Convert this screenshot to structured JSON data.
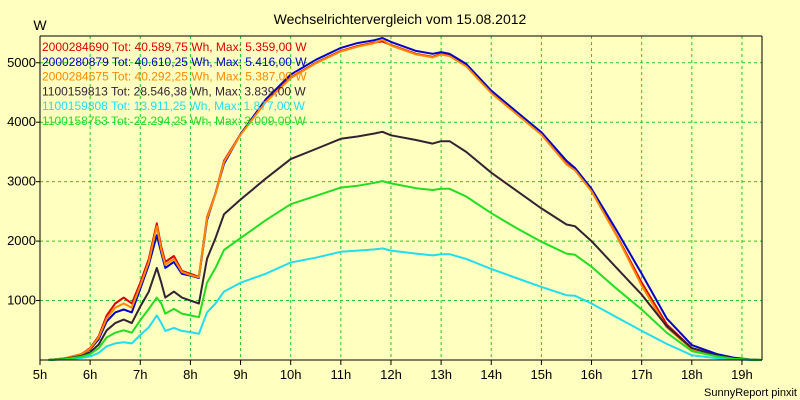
{
  "chart_data": {
    "type": "line",
    "title": "Wechselrichtervergleich vom 15.08.2012",
    "ylabel": "W",
    "xlabel": "",
    "credit": "SunnyReport pinxit",
    "xlim": [
      5,
      19.4
    ],
    "ylim": [
      0,
      5450
    ],
    "x_ticks": [
      5,
      6,
      7,
      8,
      9,
      10,
      11,
      12,
      13,
      14,
      15,
      16,
      17,
      18,
      19
    ],
    "x_tick_labels": [
      "5h",
      "6h",
      "7h",
      "8h",
      "9h",
      "10h",
      "11h",
      "12h",
      "13h",
      "14h",
      "15h",
      "16h",
      "17h",
      "18h",
      "19h"
    ],
    "y_ticks": [
      1000,
      2000,
      3000,
      4000,
      5000
    ],
    "y_tick_labels": [
      "1000",
      "2000",
      "3000",
      "4000",
      "5000"
    ],
    "grid": true,
    "legend_position": "top-left",
    "x": [
      5.17,
      5.5,
      5.83,
      6.0,
      6.17,
      6.33,
      6.5,
      6.67,
      6.83,
      7.0,
      7.17,
      7.33,
      7.42,
      7.5,
      7.67,
      7.83,
      8.0,
      8.17,
      8.33,
      8.5,
      8.67,
      9.0,
      9.5,
      10.0,
      10.5,
      11.0,
      11.33,
      11.67,
      11.83,
      12.0,
      12.5,
      12.83,
      13.0,
      13.17,
      13.5,
      14.0,
      14.5,
      15.0,
      15.5,
      15.67,
      16.0,
      16.5,
      17.0,
      17.5,
      18.0,
      18.5,
      18.83,
      19.17,
      19.4
    ],
    "series": [
      {
        "name": "2000284690 Tot: 40.589,75 Wh, Max: 5.359,00 W",
        "color": "#dd0000",
        "values": [
          0,
          30,
          100,
          200,
          400,
          750,
          950,
          1050,
          950,
          1300,
          1700,
          2300,
          1900,
          1650,
          1750,
          1500,
          1450,
          1400,
          2400,
          2800,
          3350,
          3800,
          4350,
          4750,
          5000,
          5200,
          5280,
          5340,
          5359,
          5300,
          5150,
          5100,
          5150,
          5120,
          4950,
          4500,
          4150,
          3800,
          3300,
          3200,
          2850,
          2100,
          1300,
          600,
          200,
          80,
          30,
          5,
          0
        ]
      },
      {
        "name": "2000280879 Tot: 40.610,25 Wh, Max: 5.416,00 W",
        "color": "#0000cc",
        "values": [
          0,
          25,
          90,
          180,
          350,
          650,
          800,
          850,
          800,
          1200,
          1600,
          2100,
          1800,
          1550,
          1650,
          1450,
          1420,
          1380,
          2350,
          2800,
          3300,
          3800,
          4380,
          4800,
          5050,
          5250,
          5330,
          5380,
          5416,
          5350,
          5200,
          5150,
          5180,
          5150,
          4980,
          4530,
          4180,
          3830,
          3350,
          3230,
          2880,
          2180,
          1450,
          700,
          250,
          100,
          40,
          8,
          0
        ]
      },
      {
        "name": "2000284675 Tot: 40.292,25 Wh, Max: 5.387,00 W",
        "color": "#ff8800",
        "values": [
          0,
          28,
          95,
          190,
          380,
          700,
          880,
          950,
          880,
          1250,
          1650,
          2250,
          1850,
          1600,
          1700,
          1480,
          1430,
          1390,
          2380,
          2790,
          3330,
          3790,
          4340,
          4740,
          4990,
          5190,
          5270,
          5330,
          5387,
          5290,
          5140,
          5090,
          5140,
          5110,
          4940,
          4490,
          4140,
          3790,
          3290,
          3190,
          2840,
          2090,
          1250,
          550,
          180,
          70,
          25,
          5,
          0
        ]
      },
      {
        "name": "1100159813 Tot: 28.546,38 Wh, Max: 3.839,00 W",
        "color": "#332233",
        "values": [
          0,
          20,
          70,
          130,
          260,
          500,
          620,
          680,
          620,
          900,
          1150,
          1550,
          1300,
          1050,
          1150,
          1050,
          1000,
          950,
          1700,
          2050,
          2450,
          2700,
          3050,
          3380,
          3550,
          3720,
          3760,
          3810,
          3839,
          3780,
          3700,
          3640,
          3680,
          3680,
          3500,
          3150,
          2850,
          2550,
          2280,
          2250,
          2000,
          1550,
          1100,
          570,
          200,
          80,
          30,
          5,
          0
        ]
      },
      {
        "name": "1100159808 Tot: 13.911,25 Wh, Max: 1.877,00 W",
        "color": "#22ddee",
        "values": [
          0,
          10,
          35,
          60,
          120,
          230,
          280,
          300,
          280,
          420,
          550,
          750,
          620,
          490,
          540,
          490,
          470,
          440,
          800,
          950,
          1150,
          1300,
          1450,
          1640,
          1720,
          1820,
          1840,
          1860,
          1877,
          1840,
          1790,
          1760,
          1780,
          1780,
          1700,
          1530,
          1380,
          1230,
          1090,
          1080,
          950,
          720,
          490,
          270,
          80,
          30,
          10,
          2,
          0
        ]
      },
      {
        "name": "1100158753 Tot: 22.294,25 Wh, Max: 3.009,00 W",
        "color": "#22dd22",
        "values": [
          0,
          15,
          55,
          100,
          200,
          380,
          460,
          500,
          460,
          670,
          860,
          1050,
          950,
          780,
          860,
          780,
          750,
          720,
          1300,
          1550,
          1850,
          2050,
          2350,
          2620,
          2760,
          2900,
          2930,
          2980,
          3009,
          2970,
          2890,
          2860,
          2880,
          2880,
          2750,
          2470,
          2220,
          1990,
          1790,
          1770,
          1570,
          1200,
          850,
          460,
          150,
          60,
          20,
          4,
          0
        ]
      }
    ]
  }
}
